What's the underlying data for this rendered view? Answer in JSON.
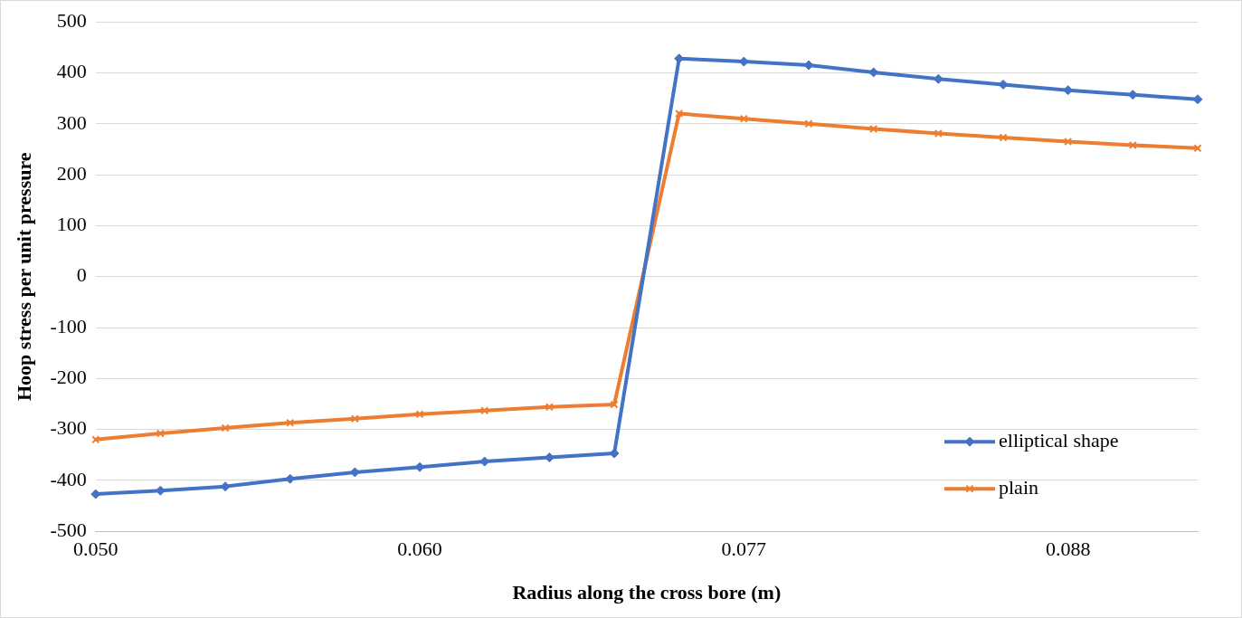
{
  "chart_data": {
    "type": "line",
    "xlabel": "Radius along the cross bore (m)",
    "ylabel": "Hoop stress per unit pressure",
    "categories": [
      "0.050",
      null,
      null,
      null,
      null,
      "0.060",
      null,
      null,
      null,
      null,
      "0.077",
      null,
      null,
      null,
      null,
      "0.088",
      null,
      null
    ],
    "series": [
      {
        "name": "elliptical shape",
        "color": "#4472c4",
        "marker": "diamond",
        "values": [
          -427,
          -420,
          -412,
          -397,
          -384,
          -374,
          -363,
          -355,
          -347,
          428,
          422,
          415,
          401,
          388,
          377,
          366,
          357,
          348
        ]
      },
      {
        "name": "plain",
        "color": "#ed7d31",
        "marker": "cross",
        "values": [
          -320,
          -308,
          -297,
          -287,
          -279,
          -270,
          -263,
          -256,
          -251,
          320,
          310,
          300,
          290,
          281,
          273,
          265,
          258,
          252
        ]
      }
    ],
    "ylim": [
      -500,
      500
    ],
    "yticks": [
      -500,
      -400,
      -300,
      -200,
      -100,
      0,
      100,
      200,
      300,
      400,
      500
    ],
    "grid": "y",
    "legend": "bottom right",
    "line_style": "solid"
  }
}
